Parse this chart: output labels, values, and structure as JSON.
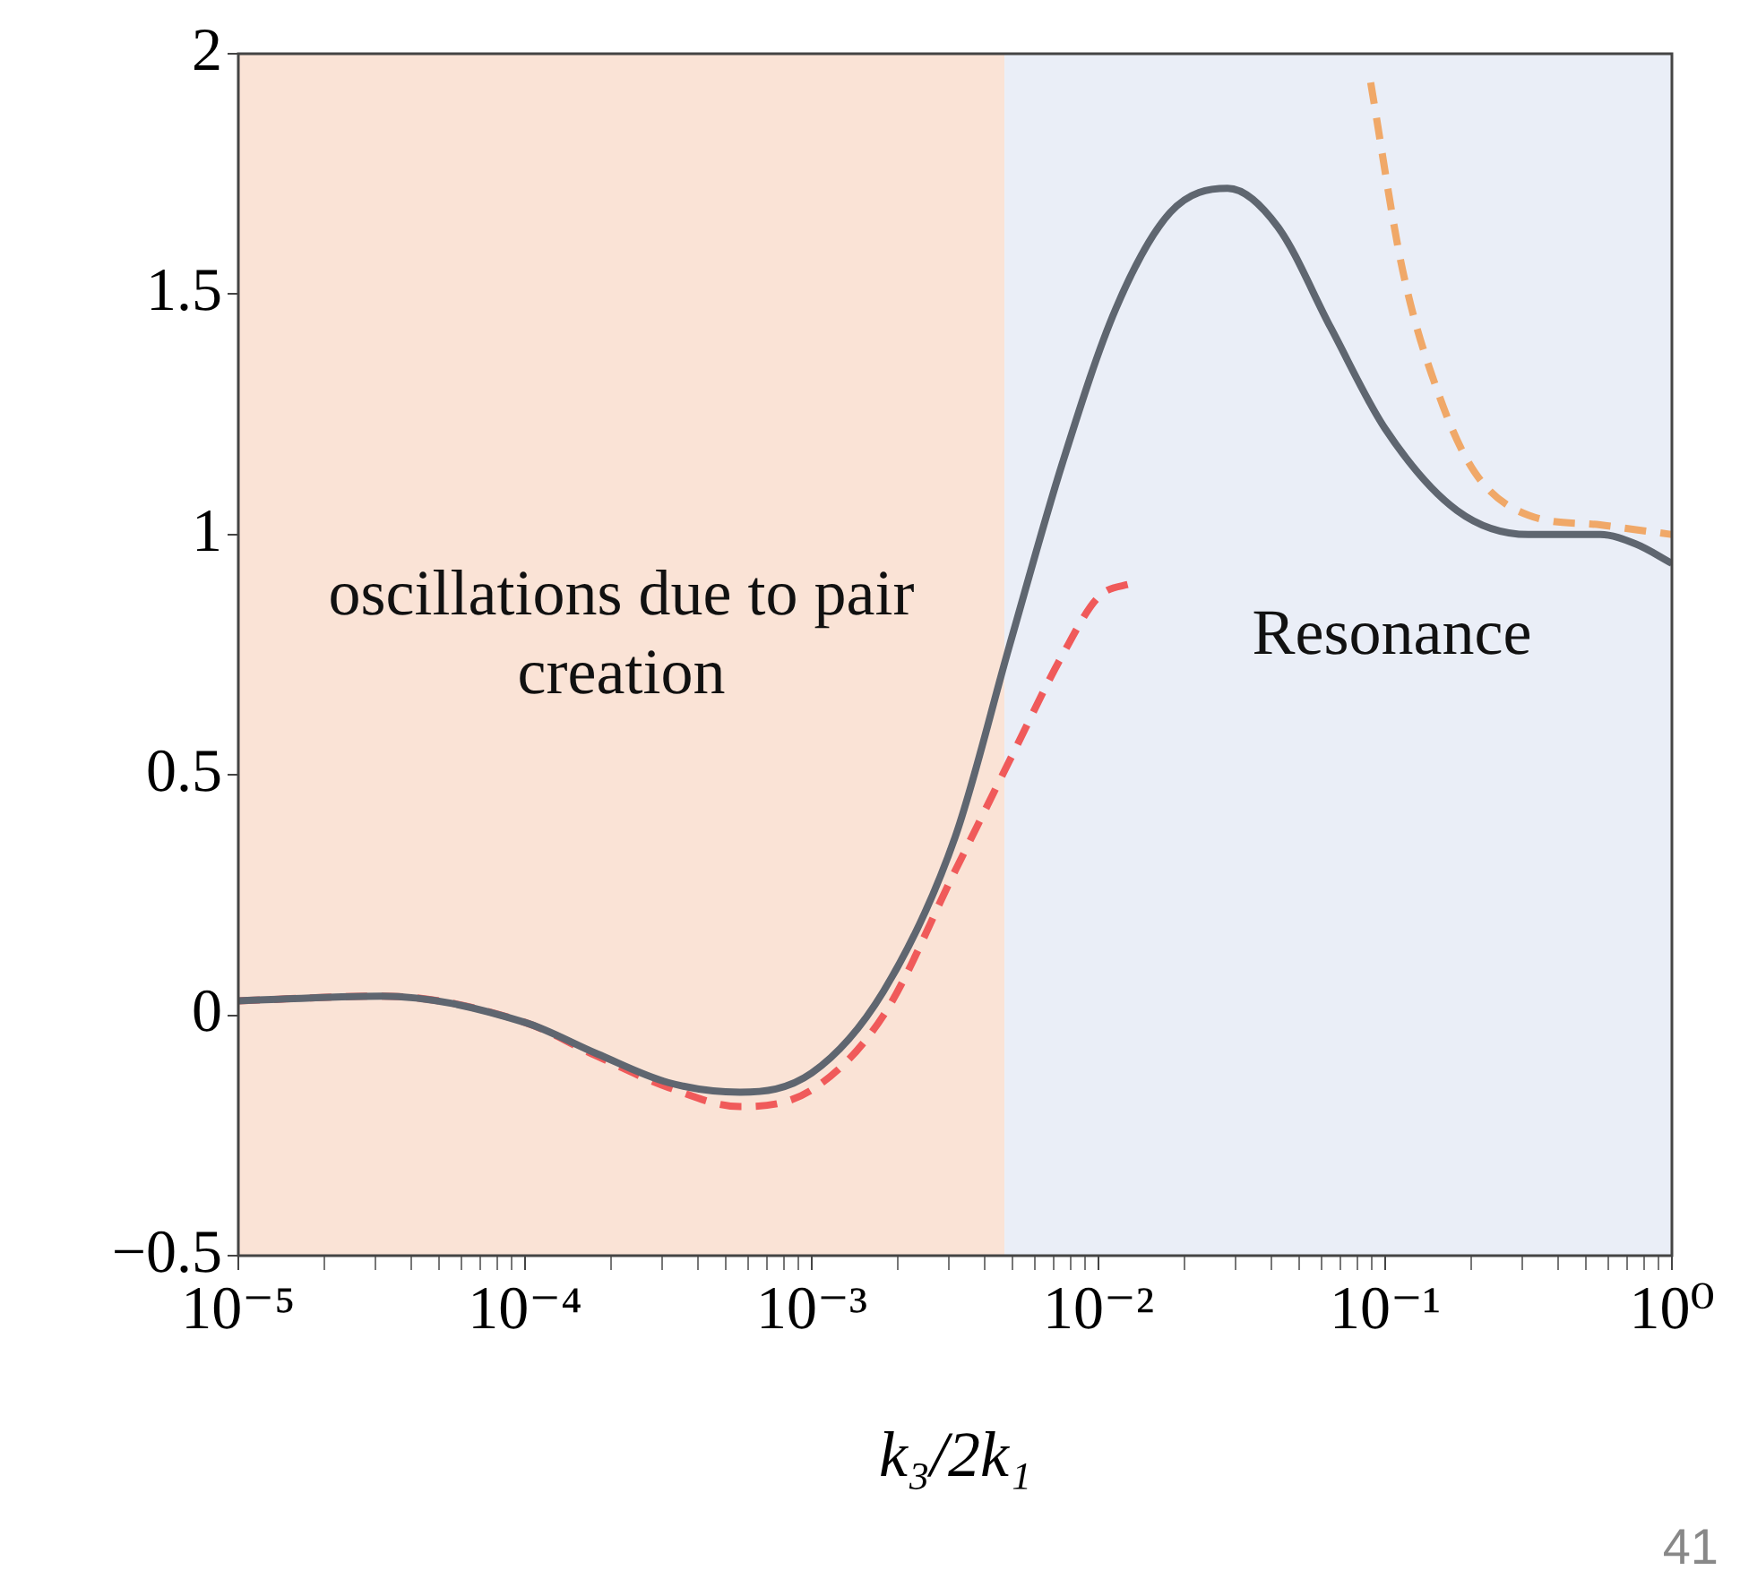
{
  "chart_data": {
    "type": "line",
    "xlabel": "k₃/2k₁",
    "log": "x",
    "grid": false,
    "legend": false,
    "marker": "none",
    "xlim": [
      1e-05,
      1
    ],
    "ylim": [
      -0.5,
      2
    ],
    "xticks": [
      {
        "value": 1e-05,
        "label": "10⁻⁵"
      },
      {
        "value": 2e-05,
        "label": null
      },
      {
        "value": 3e-05,
        "label": null
      },
      {
        "value": 4e-05,
        "label": null
      },
      {
        "value": 5e-05,
        "label": null
      },
      {
        "value": 6e-05,
        "label": null
      },
      {
        "value": 7e-05,
        "label": null
      },
      {
        "value": 8e-05,
        "label": null
      },
      {
        "value": 9e-05,
        "label": null
      },
      {
        "value": 0.0001,
        "label": "10⁻⁴"
      },
      {
        "value": 0.0002,
        "label": null
      },
      {
        "value": 0.0003,
        "label": null
      },
      {
        "value": 0.0004,
        "label": null
      },
      {
        "value": 0.0005,
        "label": null
      },
      {
        "value": 0.0006,
        "label": null
      },
      {
        "value": 0.0007,
        "label": null
      },
      {
        "value": 0.0008,
        "label": null
      },
      {
        "value": 0.0009,
        "label": null
      },
      {
        "value": 0.001,
        "label": "10⁻³"
      },
      {
        "value": 0.002,
        "label": null
      },
      {
        "value": 0.003,
        "label": null
      },
      {
        "value": 0.004,
        "label": null
      },
      {
        "value": 0.005,
        "label": null
      },
      {
        "value": 0.006,
        "label": null
      },
      {
        "value": 0.007,
        "label": null
      },
      {
        "value": 0.008,
        "label": null
      },
      {
        "value": 0.009,
        "label": null
      },
      {
        "value": 0.01,
        "label": "10⁻²"
      },
      {
        "value": 0.02,
        "label": null
      },
      {
        "value": 0.03,
        "label": null
      },
      {
        "value": 0.04,
        "label": null
      },
      {
        "value": 0.05,
        "label": null
      },
      {
        "value": 0.06,
        "label": null
      },
      {
        "value": 0.07,
        "label": null
      },
      {
        "value": 0.08,
        "label": null
      },
      {
        "value": 0.09,
        "label": null
      },
      {
        "value": 0.1,
        "label": "10⁻¹"
      },
      {
        "value": 0.2,
        "label": null
      },
      {
        "value": 0.3,
        "label": null
      },
      {
        "value": 0.4,
        "label": null
      },
      {
        "value": 0.5,
        "label": null
      },
      {
        "value": 0.6,
        "label": null
      },
      {
        "value": 0.7,
        "label": null
      },
      {
        "value": 0.8,
        "label": null
      },
      {
        "value": 0.9,
        "label": null
      },
      {
        "value": 1,
        "label": "10⁰"
      }
    ],
    "yticks": [
      -0.5,
      0,
      0.5,
      1,
      1.5,
      2
    ],
    "bands": [
      {
        "axis": "x",
        "from": 1e-05,
        "to": 0.0047,
        "label": "oscillations due to pair creation",
        "color": "#fae3d6"
      },
      {
        "axis": "x",
        "from": 0.0047,
        "to": 1,
        "label": "Resonance",
        "color": "#eaeef7"
      }
    ],
    "annotations": [
      "41"
    ],
    "series": [
      {
        "color": "#5f6670",
        "line_style": "solid",
        "x": [
          1e-05,
          3.16e-05,
          0.0001,
          0.000178,
          0.000316,
          0.000562,
          0.001,
          0.00178,
          0.00316,
          0.0049,
          0.0075,
          0.0115,
          0.0178,
          0.0282,
          0.0422,
          0.0646,
          0.1,
          0.178,
          0.316,
          0.562,
          0.75,
          1
        ],
        "values": [
          0.03,
          0.04,
          -0.015,
          -0.08,
          -0.14,
          -0.16,
          -0.12,
          0.05,
          0.37,
          0.77,
          1.15,
          1.47,
          1.67,
          1.72,
          1.64,
          1.43,
          1.22,
          1.05,
          1.0,
          1.0,
          0.98,
          0.94
        ]
      },
      {
        "color": "#f05a5a",
        "line_style": "dashed",
        "x": [
          1e-05,
          3.16e-05,
          0.0001,
          0.000178,
          0.000316,
          0.000562,
          0.001,
          0.00178,
          0.00316,
          0.0049,
          0.0075,
          0.01,
          0.0133
        ],
        "values": [
          0.03,
          0.04,
          -0.015,
          -0.085,
          -0.15,
          -0.19,
          -0.155,
          0.0,
          0.3,
          0.53,
          0.75,
          0.87,
          0.9
        ]
      },
      {
        "color": "#f0a868",
        "line_style": "dashed",
        "x": [
          0.089,
          0.115,
          0.154,
          0.205,
          0.316,
          0.562,
          0.75,
          1
        ],
        "values": [
          1.94,
          1.55,
          1.29,
          1.13,
          1.04,
          1.02,
          1.01,
          1.0
        ]
      }
    ]
  }
}
